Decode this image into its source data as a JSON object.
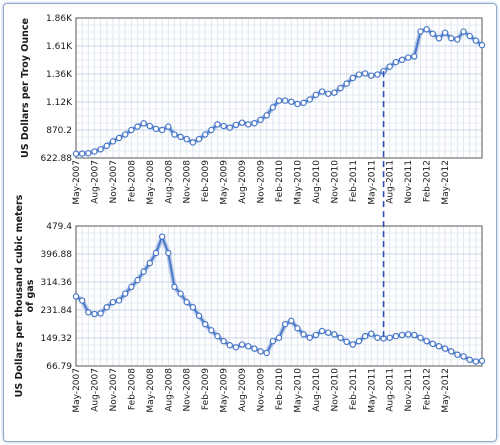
{
  "chart_data": [
    {
      "type": "line",
      "ylabel": "US Dollars per Troy Ounce",
      "xlabel": "",
      "yticks": [
        "622.88",
        "870.2",
        "1.12K",
        "1.36K",
        "1.61K",
        "1.86K"
      ],
      "ytick_values": [
        622.88,
        870.2,
        1117.5,
        1364.8,
        1612.1,
        1859.4
      ],
      "ylim": [
        622.88,
        1859.4
      ],
      "xticks": [
        "May-2007",
        "Aug-2007",
        "Nov-2007",
        "Feb-2008",
        "May-2008",
        "Aug-2008",
        "Nov-2008",
        "Feb-2009",
        "May-2009",
        "Aug-2009",
        "Nov-2009",
        "Feb-2010",
        "May-2010",
        "Aug-2010",
        "Nov-2010",
        "Feb-2011",
        "May-2011",
        "Aug-2011",
        "Nov-2011",
        "Feb-2012",
        "May-2012"
      ],
      "grid": true,
      "color": "#4a78c8",
      "series": [
        {
          "values": [
            660,
            662,
            665,
            680,
            700,
            730,
            770,
            800,
            830,
            870,
            900,
            930,
            905,
            880,
            870,
            900,
            830,
            810,
            790,
            760,
            790,
            830,
            870,
            920,
            905,
            890,
            915,
            935,
            920,
            930,
            960,
            1000,
            1070,
            1130,
            1130,
            1120,
            1100,
            1110,
            1140,
            1180,
            1210,
            1190,
            1200,
            1240,
            1280,
            1330,
            1360,
            1370,
            1350,
            1360,
            1390,
            1430,
            1470,
            1490,
            1510,
            1520,
            1740,
            1760,
            1720,
            1680,
            1730,
            1680,
            1670,
            1740,
            1700,
            1660,
            1620
          ]
        }
      ]
    },
    {
      "type": "line",
      "ylabel": "US Dollars per thousand cubic meters of gas",
      "xlabel": "",
      "yticks": [
        "66.79",
        "149.32",
        "231.84",
        "314.36",
        "396.88",
        "479.4"
      ],
      "ytick_values": [
        66.79,
        149.32,
        231.84,
        314.36,
        396.88,
        479.4
      ],
      "ylim": [
        66.79,
        479.4
      ],
      "xticks": [
        "May-2007",
        "Aug-2007",
        "Nov-2007",
        "Feb-2008",
        "May-2008",
        "Aug-2008",
        "Nov-2008",
        "Feb-2009",
        "May-2009",
        "Aug-2009",
        "Nov-2009",
        "Feb-2010",
        "May-2010",
        "Aug-2010",
        "Nov-2010",
        "Feb-2011",
        "May-2011",
        "Aug-2011",
        "Nov-2011",
        "Feb-2012",
        "May-2012"
      ],
      "grid": true,
      "color": "#4a78c8",
      "series": [
        {
          "values": [
            272,
            260,
            225,
            220,
            222,
            240,
            255,
            260,
            280,
            300,
            320,
            345,
            370,
            400,
            448,
            400,
            300,
            280,
            255,
            240,
            215,
            190,
            172,
            155,
            140,
            128,
            122,
            130,
            125,
            118,
            110,
            105,
            140,
            150,
            190,
            200,
            178,
            160,
            150,
            158,
            170,
            165,
            160,
            150,
            138,
            130,
            140,
            155,
            162,
            150,
            148,
            150,
            155,
            158,
            160,
            158,
            150,
            140,
            132,
            125,
            118,
            110,
            100,
            95,
            85,
            80,
            82
          ]
        }
      ]
    }
  ],
  "shared": {
    "marker_date": "Jul-2011",
    "marker_color": "#2a4fb0"
  }
}
